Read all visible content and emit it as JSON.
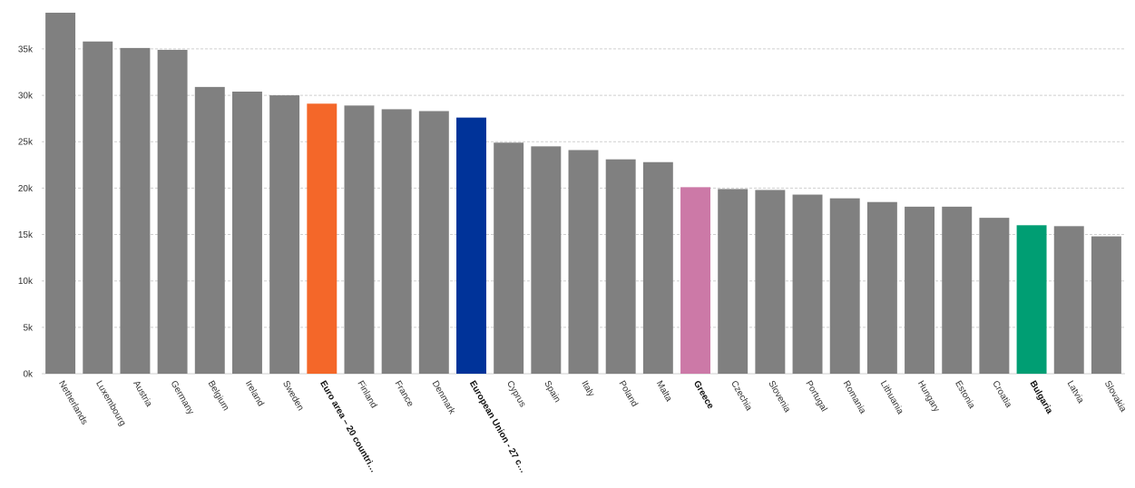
{
  "chart_data": {
    "type": "bar",
    "title": "",
    "xlabel": "",
    "ylabel": "",
    "ylim": [
      0,
      39000
    ],
    "yticks": [
      0,
      5000,
      10000,
      15000,
      20000,
      25000,
      30000,
      35000
    ],
    "ytick_labels": [
      "0k",
      "5k",
      "10k",
      "15k",
      "20k",
      "25k",
      "30k",
      "35k"
    ],
    "grid": true,
    "categories": [
      "Netherlands",
      "Luxembourg",
      "Austria",
      "Germany",
      "Belgium",
      "Ireland",
      "Sweden",
      "Euro area – 20 countri…",
      "Finland",
      "France",
      "Denmark",
      "European Union - 27 c…",
      "Cyprus",
      "Spain",
      "Italy",
      "Poland",
      "Malta",
      "Greece",
      "Czechia",
      "Slovenia",
      "Portugal",
      "Romania",
      "Lithuania",
      "Hungary",
      "Estonia",
      "Croatia",
      "Bulgaria",
      "Latvia",
      "Slovakia"
    ],
    "values": [
      38900,
      35800,
      35100,
      34900,
      30900,
      30400,
      30000,
      29100,
      28900,
      28500,
      28300,
      27600,
      24900,
      24500,
      24100,
      23100,
      22800,
      20100,
      19900,
      19800,
      19300,
      18900,
      18500,
      18000,
      18000,
      16800,
      16000,
      15900,
      14800
    ],
    "highlighted": [
      "Euro area – 20 countri…",
      "European Union - 27 c…",
      "Greece",
      "Bulgaria"
    ],
    "colors": {
      "default": "#808080",
      "Euro area – 20 countri…": "#f46729",
      "European Union - 27 c…": "#003399",
      "Greece": "#cc79a7",
      "Bulgaria": "#009e73"
    }
  }
}
